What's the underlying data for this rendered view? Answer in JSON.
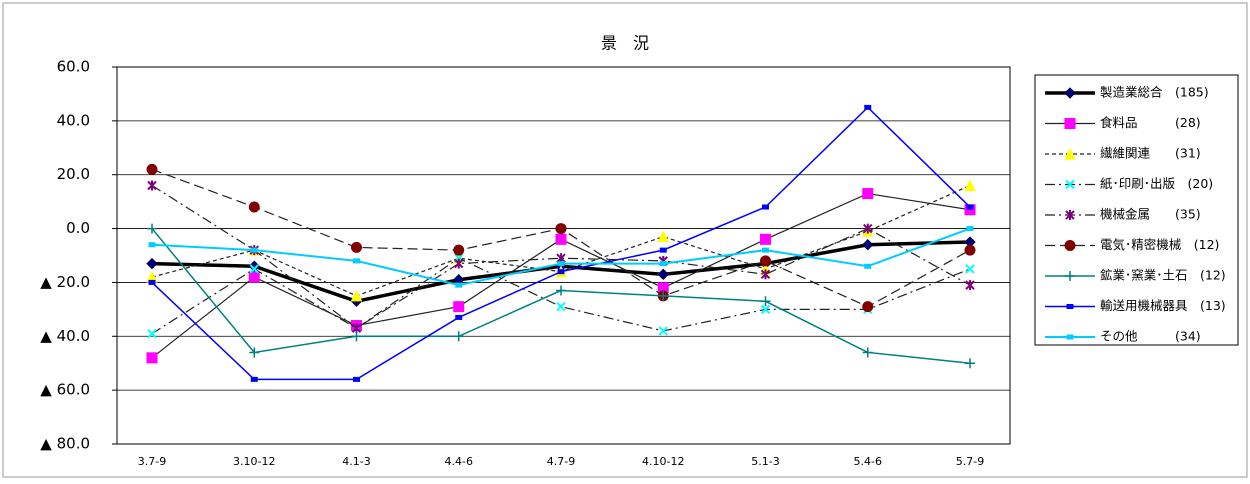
{
  "chart_data": {
    "type": "line",
    "title": "景　況",
    "categories": [
      "3.7-9",
      "3.10-12",
      "4.1-3",
      "4.4-6",
      "4.7-9",
      "4.10-12",
      "5.1-3",
      "5.4-6",
      "5.7-9"
    ],
    "ylim": [
      -80,
      60
    ],
    "yticks": [
      {
        "value": -80,
        "label": "▲ 80.0"
      },
      {
        "value": -60,
        "label": "▲ 60.0"
      },
      {
        "value": -40,
        "label": "▲ 40.0"
      },
      {
        "value": -20,
        "label": "▲ 20.0"
      },
      {
        "value": 0,
        "label": "0.0"
      },
      {
        "value": 20,
        "label": "20.0"
      },
      {
        "value": 40,
        "label": "40.0"
      },
      {
        "value": 60,
        "label": "60.0"
      }
    ],
    "grid": true,
    "legend": "right",
    "series": [
      {
        "name": "製造業総合　(185)",
        "color": "#000000",
        "width": 3.5,
        "dash": "",
        "marker": "diamond",
        "marker_color": "#000080",
        "values": [
          -13,
          -14,
          -27,
          -19,
          -14,
          -17,
          -13,
          -6,
          -5
        ]
      },
      {
        "name": "食料品　　　(28)",
        "color": "#222222",
        "width": 1.2,
        "dash": "",
        "marker": "square",
        "marker_color": "#ff00ff",
        "values": [
          -48,
          -18,
          -36,
          -29,
          -4,
          -22,
          -4,
          13,
          7
        ]
      },
      {
        "name": "繊維関連　　(31)",
        "color": "#222222",
        "width": 1.2,
        "dash": "4 3",
        "marker": "triangle",
        "marker_color": "#ffff00",
        "values": [
          -18,
          -8,
          -25,
          -11,
          -16,
          -3,
          -15,
          -1,
          16
        ]
      },
      {
        "name": "紙･印刷･出版　(20)",
        "color": "#222222",
        "width": 1.2,
        "dash": "10 4 2 4",
        "marker": "x",
        "marker_color": "#00ffff",
        "values": [
          -39,
          -15,
          -37,
          -11,
          -29,
          -38,
          -30,
          -30,
          -15
        ]
      },
      {
        "name": "機械金属　　(35)",
        "color": "#222222",
        "width": 1.2,
        "dash": "10 4 2 4",
        "marker": "star",
        "marker_color": "#800080",
        "values": [
          16,
          -8,
          -37,
          -13,
          -11,
          -12,
          -17,
          0,
          -21
        ]
      },
      {
        "name": "電気･精密機械　(12)",
        "color": "#222222",
        "width": 1.2,
        "dash": "10 5",
        "marker": "circle",
        "marker_color": "#800000",
        "values": [
          22,
          8,
          -7,
          -8,
          0,
          -25,
          -12,
          -29,
          -8
        ]
      },
      {
        "name": "鉱業･窯業･土石　(12)",
        "color": "#008080",
        "width": 1.5,
        "dash": "",
        "marker": "plus",
        "marker_color": "#008080",
        "values": [
          0,
          -46,
          -40,
          -40,
          -23,
          -25,
          -27,
          -46,
          -50
        ]
      },
      {
        "name": "輸送用機械器具　(13)",
        "color": "#0000ff",
        "width": 1.5,
        "dash": "",
        "marker": "dot",
        "marker_color": "#0000ff",
        "values": [
          -20,
          -56,
          -56,
          -33,
          -16,
          -8,
          8,
          45,
          8
        ]
      },
      {
        "name": "その他　　　(34)",
        "color": "#00ccff",
        "width": 2,
        "dash": "",
        "marker": "dot",
        "marker_color": "#00ccff",
        "values": [
          -6,
          -8,
          -12,
          -21,
          -13,
          -13,
          -8,
          -14,
          0
        ]
      }
    ]
  }
}
